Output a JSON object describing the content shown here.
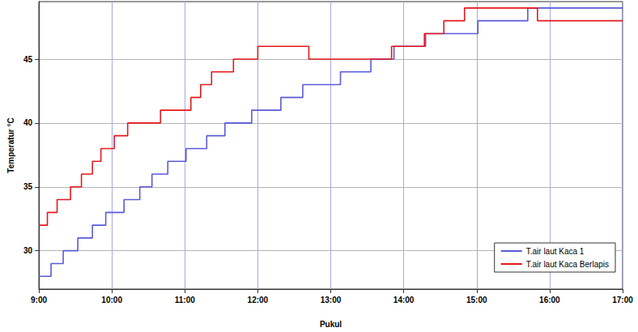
{
  "chart_data": {
    "type": "line",
    "x_label": "Pukul",
    "y_label": "Temperatur °C",
    "xlim": [
      540,
      1020
    ],
    "xticks": [
      {
        "value": 540,
        "label": "9:00"
      },
      {
        "value": 600,
        "label": "10:00"
      },
      {
        "value": 660,
        "label": "11:00"
      },
      {
        "value": 720,
        "label": "12:00"
      },
      {
        "value": 780,
        "label": "13:00"
      },
      {
        "value": 840,
        "label": "14:00"
      },
      {
        "value": 900,
        "label": "15:00"
      },
      {
        "value": 960,
        "label": "16:00"
      },
      {
        "value": 1020,
        "label": "17:00"
      }
    ],
    "ylim": [
      27,
      49.5
    ],
    "yticks": [
      30,
      35,
      40,
      45
    ],
    "grid": true,
    "legend": "lower right",
    "series": [
      {
        "name": "T.air laut Kaca 1",
        "color": "#5a5ad8",
        "x": [
          540,
          550,
          560,
          572,
          584,
          595,
          610,
          623,
          633,
          646,
          661,
          678,
          693,
          715,
          739,
          757,
          788,
          813,
          832,
          858,
          901,
          942,
          1020
        ],
        "values": [
          28,
          29,
          30,
          31,
          32,
          33,
          34,
          35,
          36,
          37,
          38,
          39,
          40,
          41,
          42,
          43,
          44,
          45,
          46,
          47,
          48,
          49,
          49
        ]
      },
      {
        "name": "T.air laut Kaca Berlapis",
        "color": "#e3191c",
        "x": [
          540,
          547,
          555,
          566,
          575,
          584,
          591,
          602,
          613,
          640,
          665,
          673,
          682,
          700,
          720,
          762,
          830,
          857,
          873,
          890,
          950,
          1020
        ],
        "values": [
          32,
          33,
          34,
          35,
          36,
          37,
          38,
          39,
          40,
          41,
          42,
          43,
          44,
          45,
          46,
          45,
          46,
          47,
          48,
          49,
          48,
          48
        ]
      }
    ]
  }
}
